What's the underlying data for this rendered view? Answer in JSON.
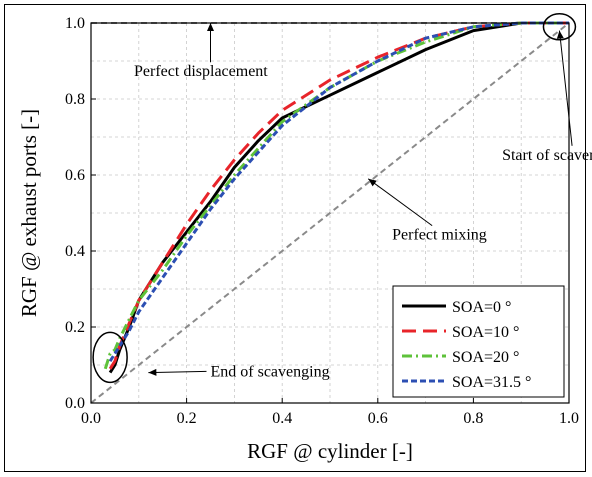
{
  "chart_data": {
    "type": "line",
    "xlabel": "RGF @ cylinder [-]",
    "ylabel": "RGF @ exhaust ports [-]",
    "xlim": [
      0.0,
      1.0
    ],
    "ylim": [
      0.0,
      1.0
    ],
    "xticks": [
      0.0,
      0.2,
      0.4,
      0.6,
      0.8,
      1.0
    ],
    "yticks": [
      0.0,
      0.2,
      0.4,
      0.6,
      0.8,
      1.0
    ],
    "xtick_labels": [
      "0.0",
      "0.2",
      "0.4",
      "0.6",
      "0.8",
      "1.0"
    ],
    "ytick_labels": [
      "0.0",
      "0.2",
      "0.4",
      "0.6",
      "0.8",
      "1.0"
    ],
    "grid": true,
    "legend_position": "bottom-right",
    "series": [
      {
        "name": "SOA=0 °",
        "color": "#000000",
        "dash": "solid",
        "x": [
          0.04,
          0.05,
          0.06,
          0.08,
          0.1,
          0.15,
          0.2,
          0.25,
          0.3,
          0.35,
          0.4,
          0.5,
          0.6,
          0.7,
          0.8,
          0.9,
          1.0
        ],
        "y": [
          0.08,
          0.1,
          0.14,
          0.2,
          0.27,
          0.37,
          0.45,
          0.53,
          0.62,
          0.69,
          0.75,
          0.81,
          0.87,
          0.93,
          0.98,
          1.0,
          1.0
        ]
      },
      {
        "name": "SOA=10 °",
        "color": "#e8242a",
        "dash": "long",
        "x": [
          0.04,
          0.05,
          0.06,
          0.08,
          0.1,
          0.15,
          0.2,
          0.25,
          0.3,
          0.35,
          0.4,
          0.5,
          0.6,
          0.7,
          0.8,
          0.9,
          1.0
        ],
        "y": [
          0.09,
          0.11,
          0.15,
          0.21,
          0.27,
          0.37,
          0.47,
          0.56,
          0.64,
          0.71,
          0.77,
          0.85,
          0.91,
          0.96,
          0.99,
          1.0,
          1.0
        ]
      },
      {
        "name": "SOA=20 °",
        "color": "#5ec23a",
        "dash": "dashdot",
        "x": [
          0.03,
          0.04,
          0.05,
          0.06,
          0.08,
          0.1,
          0.15,
          0.2,
          0.25,
          0.3,
          0.35,
          0.4,
          0.5,
          0.6,
          0.7,
          0.8,
          0.9,
          1.0
        ],
        "y": [
          0.09,
          0.13,
          0.14,
          0.17,
          0.22,
          0.27,
          0.35,
          0.44,
          0.52,
          0.6,
          0.67,
          0.74,
          0.83,
          0.9,
          0.95,
          0.99,
          1.0,
          1.0
        ]
      },
      {
        "name": "SOA=31.5 °",
        "color": "#2c4fb3",
        "dash": "short",
        "x": [
          0.04,
          0.05,
          0.06,
          0.08,
          0.1,
          0.15,
          0.2,
          0.25,
          0.3,
          0.35,
          0.4,
          0.5,
          0.6,
          0.7,
          0.8,
          0.9,
          1.0
        ],
        "y": [
          0.11,
          0.13,
          0.15,
          0.19,
          0.24,
          0.33,
          0.42,
          0.51,
          0.59,
          0.66,
          0.73,
          0.83,
          0.9,
          0.96,
          0.99,
          1.0,
          1.0
        ]
      }
    ],
    "reference_lines": [
      {
        "label": "Perfect displacement",
        "color": "#8a8a8a",
        "x": [
          0.0,
          1.0
        ],
        "y": [
          1.0,
          1.0
        ]
      },
      {
        "label": "Perfect mixing",
        "color": "#8a8a8a",
        "x": [
          0.0,
          1.0
        ],
        "y": [
          0.0,
          1.0
        ]
      }
    ],
    "annotations": [
      {
        "text": "Perfect displacement",
        "tx": 0.09,
        "ty": 0.86,
        "ax": 0.25,
        "ay": 1.0
      },
      {
        "text": "Perfect mixing",
        "tx": 0.63,
        "ty": 0.43,
        "ax": 0.58,
        "ay": 0.59
      },
      {
        "text": "Start of scavenging",
        "tx": 0.86,
        "ty": 0.64,
        "ax": 0.98,
        "ay": 0.98
      },
      {
        "text": "End of scavenging",
        "tx": 0.25,
        "ty": 0.07,
        "ax": 0.12,
        "ay": 0.08
      }
    ],
    "markers": [
      {
        "shape": "ellipse",
        "x": 0.04,
        "y": 0.12
      },
      {
        "shape": "ellipse",
        "x": 0.98,
        "y": 0.99
      }
    ]
  }
}
